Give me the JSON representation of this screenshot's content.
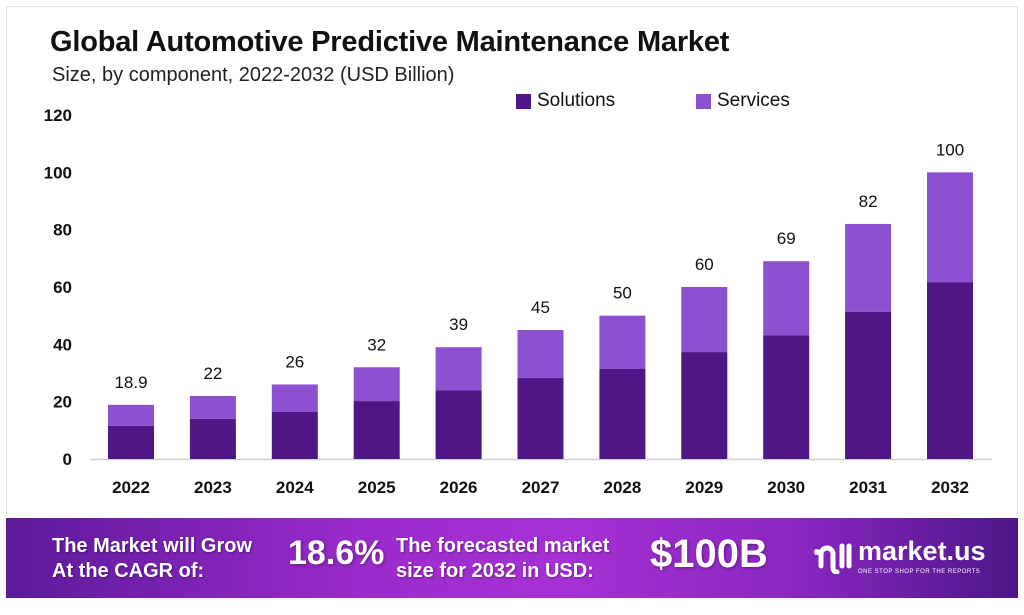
{
  "chart_data": {
    "type": "bar",
    "stacked": true,
    "title": "Global Automotive Predictive Maintenance Market",
    "subtitle": "Size, by component, 2022-2032 (USD Billion)",
    "xlabel": "",
    "ylabel": "",
    "ylim": [
      0,
      120
    ],
    "yticks": [
      0,
      20,
      40,
      60,
      80,
      100,
      120
    ],
    "grid": false,
    "legend_position": "top-right",
    "categories": [
      "2022",
      "2023",
      "2024",
      "2025",
      "2026",
      "2027",
      "2028",
      "2029",
      "2030",
      "2031",
      "2032"
    ],
    "series": [
      {
        "name": "Solutions",
        "color": "#4f1786",
        "values": [
          11.6,
          14.0,
          16.4,
          20.2,
          24.0,
          28.3,
          31.4,
          37.3,
          43.2,
          51.3,
          61.7
        ]
      },
      {
        "name": "Services",
        "color": "#8c50d0",
        "values": [
          7.3,
          8.0,
          9.6,
          11.8,
          15.0,
          16.7,
          18.6,
          22.7,
          25.8,
          30.7,
          38.3
        ]
      }
    ],
    "totals": [
      "18.9",
      "22",
      "26",
      "32",
      "39",
      "45",
      "50",
      "60",
      "69",
      "82",
      "100"
    ]
  },
  "banner": {
    "cagr_label_line1": "The Market will Grow",
    "cagr_label_line2": "At the CAGR of:",
    "cagr_value": "18.6%",
    "forecast_label_line1": "The forecasted market",
    "forecast_label_line2": "size for 2032 in USD:",
    "forecast_value": "$100B",
    "logo_name": "market.us",
    "logo_tagline": "ONE STOP SHOP FOR THE REPORTS"
  }
}
